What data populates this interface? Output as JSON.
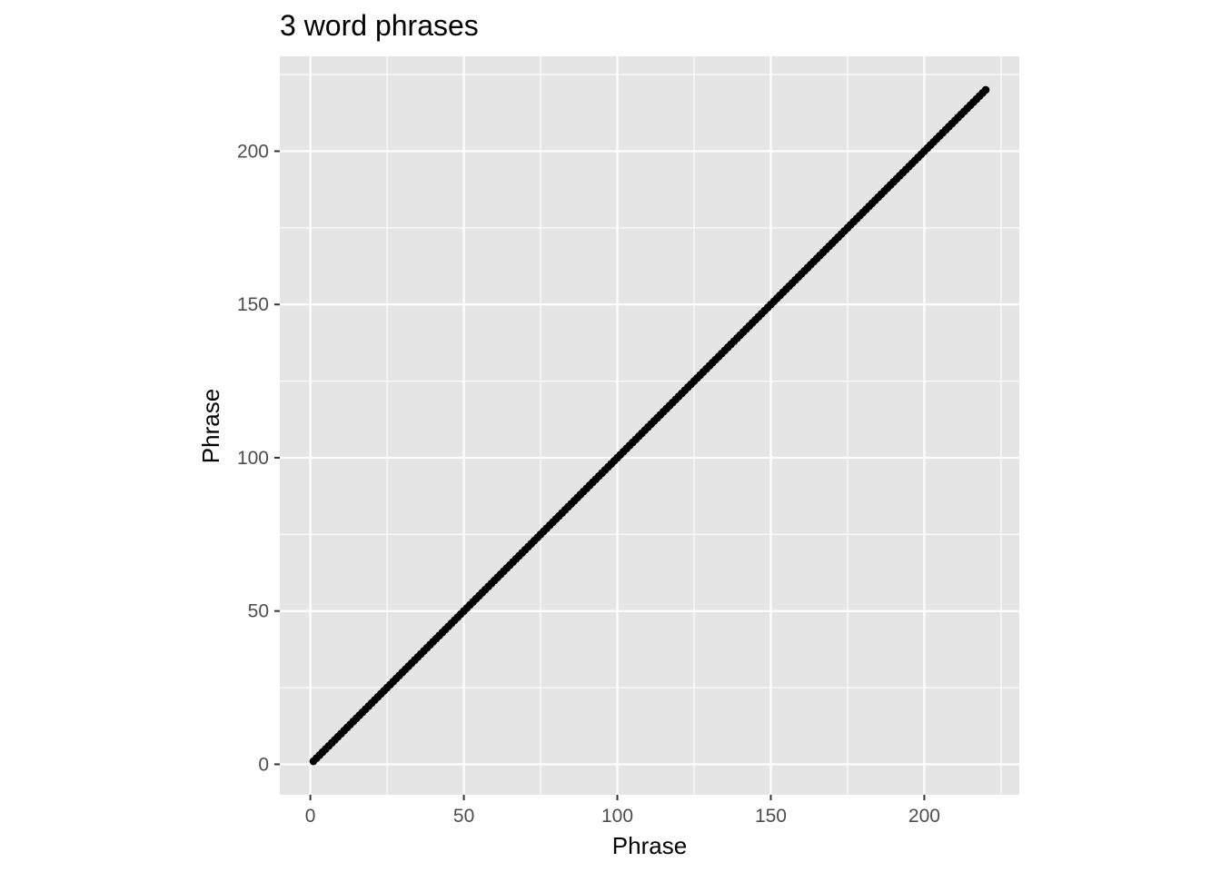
{
  "chart_data": {
    "type": "scatter",
    "title": "3 word phrases",
    "xlabel": "Phrase",
    "ylabel": "Phrase",
    "xlim": [
      -9.95,
      230.95
    ],
    "ylim": [
      -9.95,
      230.95
    ],
    "x_ticks": [
      0,
      50,
      100,
      150,
      200
    ],
    "y_ticks": [
      0,
      50,
      100,
      150,
      200
    ],
    "x_minor": [
      25,
      75,
      125,
      175,
      225
    ],
    "y_minor": [
      25,
      75,
      125,
      175,
      225
    ],
    "grid": true,
    "legend": "none",
    "point_range": {
      "start": 1,
      "end": 220,
      "step": 1
    },
    "colors": {
      "panel": "#e5e5e5",
      "grid": "#ffffff",
      "points": "#000000",
      "ticks": "#4d4d4d"
    }
  }
}
